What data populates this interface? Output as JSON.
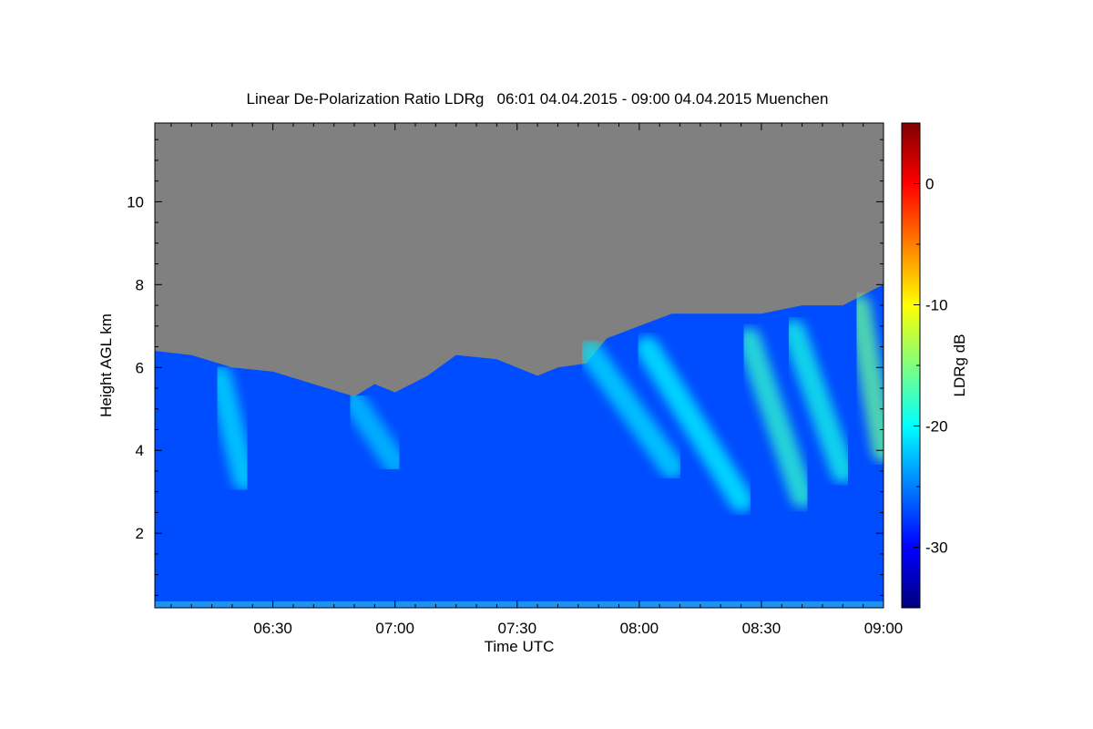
{
  "chart_data": {
    "type": "heatmap",
    "title": "Linear De-Polarization Ratio LDRg   06:01 04.04.2015 - 09:00 04.04.2015 Muenchen",
    "xlabel": "Time UTC",
    "ylabel": "Height AGL km",
    "colorbar_label": "LDRg dB",
    "xlim": [
      "06:01",
      "09:00"
    ],
    "ylim": [
      0.2,
      11.9
    ],
    "clim": [
      -35,
      5
    ],
    "x_ticks": [
      {
        "label": "06:30",
        "minutes": 30
      },
      {
        "label": "07:00",
        "minutes": 60
      },
      {
        "label": "07:30",
        "minutes": 90
      },
      {
        "label": "08:00",
        "minutes": 120
      },
      {
        "label": "08:30",
        "minutes": 150
      },
      {
        "label": "09:00",
        "minutes": 180
      }
    ],
    "y_ticks": [
      {
        "label": "2",
        "value": 2
      },
      {
        "label": "4",
        "value": 4
      },
      {
        "label": "6",
        "value": 6
      },
      {
        "label": "8",
        "value": 8
      },
      {
        "label": "10",
        "value": 10
      }
    ],
    "colorbar_ticks": [
      {
        "label": "0",
        "value": 0
      },
      {
        "label": "-10",
        "value": -10
      },
      {
        "label": "-20",
        "value": -20
      },
      {
        "label": "-30",
        "value": -30
      }
    ],
    "colormap": [
      "#00007f",
      "#0000ff",
      "#007fff",
      "#00ffff",
      "#7fff7f",
      "#ffff00",
      "#ff7f00",
      "#ff0000",
      "#7f0000"
    ],
    "no_signal_color": "#808080",
    "background_ldr_db": -27,
    "cloud_top_km": [
      {
        "t": 1,
        "h": 6.4
      },
      {
        "t": 10,
        "h": 6.3
      },
      {
        "t": 20,
        "h": 6.0
      },
      {
        "t": 30,
        "h": 5.9
      },
      {
        "t": 40,
        "h": 5.6
      },
      {
        "t": 50,
        "h": 5.3
      },
      {
        "t": 55,
        "h": 5.6
      },
      {
        "t": 60,
        "h": 5.4
      },
      {
        "t": 68,
        "h": 5.8
      },
      {
        "t": 75,
        "h": 6.3
      },
      {
        "t": 85,
        "h": 6.2
      },
      {
        "t": 95,
        "h": 5.8
      },
      {
        "t": 100,
        "h": 6.0
      },
      {
        "t": 107,
        "h": 6.1
      },
      {
        "t": 112,
        "h": 6.7
      },
      {
        "t": 120,
        "h": 7.0
      },
      {
        "t": 128,
        "h": 7.3
      },
      {
        "t": 140,
        "h": 7.3
      },
      {
        "t": 150,
        "h": 7.3
      },
      {
        "t": 160,
        "h": 7.5
      },
      {
        "t": 170,
        "h": 7.5
      },
      {
        "t": 180,
        "h": 8.0
      }
    ],
    "fall_streaks": [
      {
        "t_top": 17,
        "h_top": 5.9,
        "t_bottom": 23,
        "h_bottom": 3.3,
        "ldr_db": -21
      },
      {
        "t_top": 50,
        "h_top": 5.3,
        "t_bottom": 60,
        "h_bottom": 3.7,
        "ldr_db": -22
      },
      {
        "t_top": 108,
        "h_top": 6.5,
        "t_bottom": 128,
        "h_bottom": 3.6,
        "ldr_db": -21
      },
      {
        "t_top": 122,
        "h_top": 6.6,
        "t_bottom": 145,
        "h_bottom": 2.8,
        "ldr_db": -20
      },
      {
        "t_top": 147,
        "h_top": 6.8,
        "t_bottom": 160,
        "h_bottom": 2.9,
        "ldr_db": -18
      },
      {
        "t_top": 158,
        "h_top": 7.0,
        "t_bottom": 170,
        "h_bottom": 3.5,
        "ldr_db": -19
      },
      {
        "t_top": 174,
        "h_top": 7.6,
        "t_bottom": 180,
        "h_bottom": 4.0,
        "ldr_db": -16
      }
    ],
    "grid": false,
    "colorbar_position": "right"
  }
}
